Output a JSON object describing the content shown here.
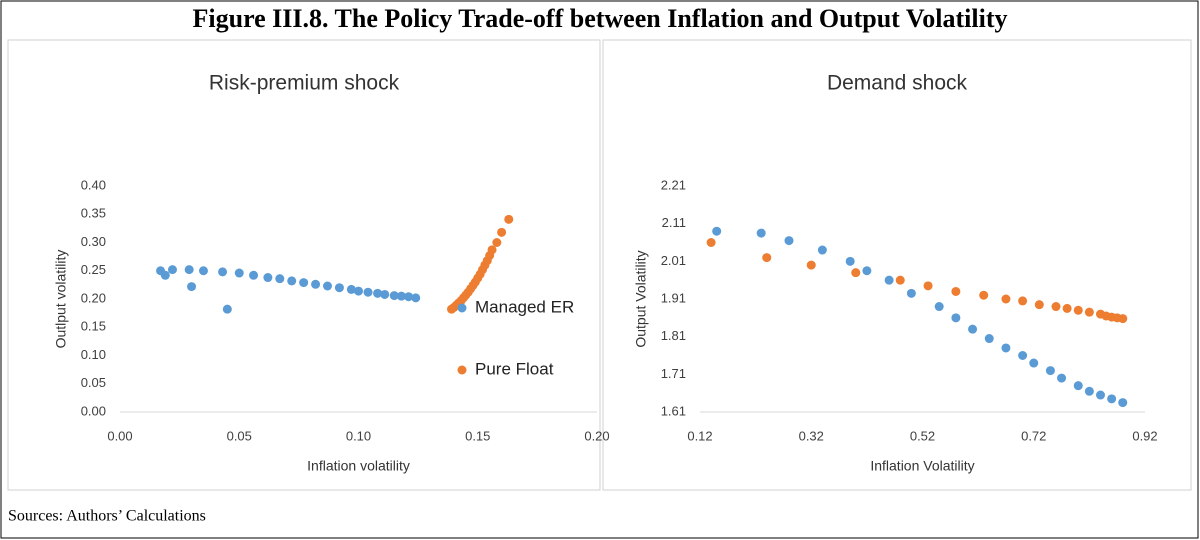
{
  "title": "Figure III.8. The Policy Trade-off between Inflation and Output Volatility",
  "source": "Sources: Authors’ Calculations",
  "chart_data": [
    {
      "type": "scatter",
      "title": "Risk-premium shock",
      "xlabel": "Inflation volatility",
      "ylabel": "Outlput volatility",
      "xlim": [
        0,
        0.2
      ],
      "ylim": [
        0,
        0.4
      ],
      "xticks": [
        {
          "value": 0,
          "label": "0.00"
        },
        {
          "value": 0.05,
          "label": "0.05"
        },
        {
          "value": 0.1,
          "label": "0.10"
        },
        {
          "value": 0.15,
          "label": "0.15"
        },
        {
          "value": 0.2,
          "label": "0.20"
        }
      ],
      "yticks": [
        {
          "value": 0,
          "label": "0.00"
        },
        {
          "value": 0.05,
          "label": "0.05"
        },
        {
          "value": 0.1,
          "label": "0.10"
        },
        {
          "value": 0.15,
          "label": "0.15"
        },
        {
          "value": 0.2,
          "label": "0.20"
        },
        {
          "value": 0.25,
          "label": "0.25"
        },
        {
          "value": 0.3,
          "label": "0.30"
        },
        {
          "value": 0.35,
          "label": "0.35"
        },
        {
          "value": 0.4,
          "label": "0.40"
        }
      ],
      "legend": "right",
      "series": [
        {
          "name": "Managed ER",
          "color": "#5b9bd5",
          "x": [
            0.017,
            0.019,
            0.022,
            0.029,
            0.03,
            0.035,
            0.043,
            0.045,
            0.05,
            0.056,
            0.062,
            0.067,
            0.072,
            0.077,
            0.082,
            0.087,
            0.092,
            0.097,
            0.1,
            0.104,
            0.108,
            0.111,
            0.115,
            0.118,
            0.121,
            0.124
          ],
          "values": [
            0.25,
            0.242,
            0.252,
            0.252,
            0.222,
            0.25,
            0.248,
            0.182,
            0.246,
            0.242,
            0.238,
            0.236,
            0.232,
            0.229,
            0.226,
            0.223,
            0.22,
            0.217,
            0.214,
            0.212,
            0.21,
            0.208,
            0.206,
            0.205,
            0.204,
            0.202
          ]
        },
        {
          "name": "Pure Float",
          "color": "#ed7d31",
          "x": [
            0.139,
            0.14,
            0.141,
            0.142,
            0.143,
            0.144,
            0.145,
            0.146,
            0.147,
            0.148,
            0.149,
            0.15,
            0.151,
            0.152,
            0.153,
            0.154,
            0.155,
            0.156,
            0.158,
            0.16,
            0.163
          ],
          "values": [
            0.182,
            0.185,
            0.189,
            0.193,
            0.197,
            0.202,
            0.207,
            0.212,
            0.218,
            0.224,
            0.23,
            0.237,
            0.244,
            0.252,
            0.26,
            0.268,
            0.277,
            0.287,
            0.3,
            0.318,
            0.341
          ]
        }
      ]
    },
    {
      "type": "scatter",
      "title": "Demand shock",
      "xlabel": "Inflation Volatility",
      "ylabel": "Output Volatility",
      "xlim": [
        0.12,
        0.92
      ],
      "ylim": [
        1.61,
        2.21
      ],
      "xticks": [
        0.12,
        0.32,
        0.52,
        0.72,
        0.92
      ],
      "yticks": [
        1.61,
        1.71,
        1.81,
        1.91,
        2.01,
        2.11,
        2.21
      ],
      "series": [
        {
          "color": "#5b9bd5",
          "x": [
            0.15,
            0.23,
            0.28,
            0.34,
            0.39,
            0.42,
            0.46,
            0.5,
            0.55,
            0.58,
            0.61,
            0.64,
            0.67,
            0.7,
            0.72,
            0.75,
            0.77,
            0.8,
            0.82,
            0.84,
            0.86,
            0.88
          ],
          "values": [
            2.09,
            2.085,
            2.065,
            2.04,
            2.01,
            1.985,
            1.96,
            1.925,
            1.89,
            1.86,
            1.83,
            1.805,
            1.78,
            1.76,
            1.74,
            1.72,
            1.7,
            1.68,
            1.665,
            1.655,
            1.645,
            1.635
          ]
        },
        {
          "color": "#ed7d31",
          "x": [
            0.14,
            0.24,
            0.32,
            0.4,
            0.48,
            0.53,
            0.58,
            0.63,
            0.67,
            0.7,
            0.73,
            0.76,
            0.78,
            0.8,
            0.82,
            0.84,
            0.85,
            0.86,
            0.87,
            0.88
          ],
          "values": [
            2.06,
            2.02,
            2.0,
            1.98,
            1.96,
            1.945,
            1.93,
            1.92,
            1.91,
            1.905,
            1.895,
            1.89,
            1.885,
            1.88,
            1.875,
            1.87,
            1.865,
            1.862,
            1.86,
            1.858
          ]
        }
      ]
    }
  ]
}
